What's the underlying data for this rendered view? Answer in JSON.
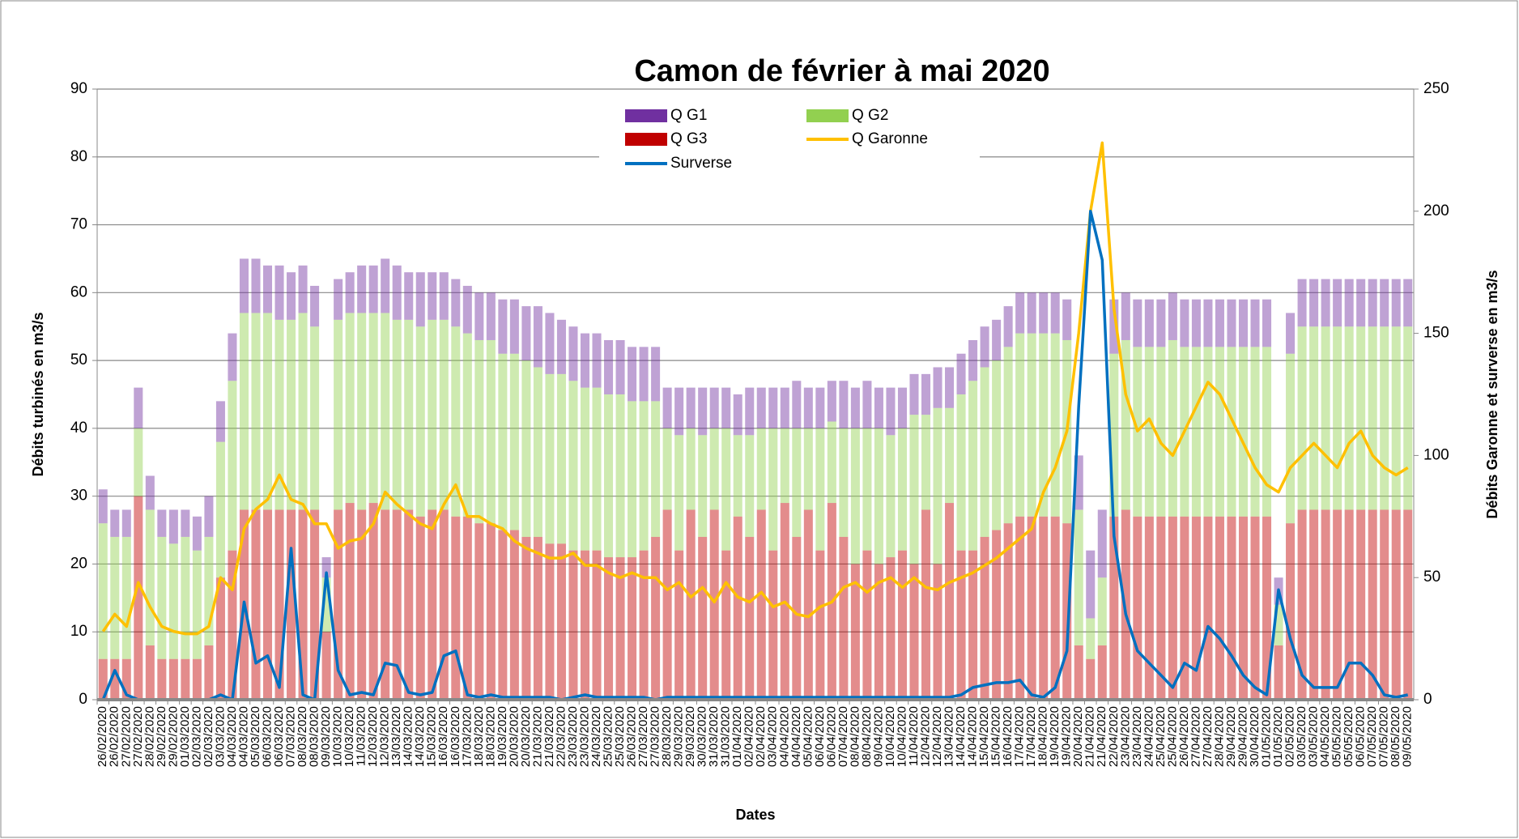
{
  "chart_data": {
    "type": "stacked-bar",
    "title": "Camon de février à mai 2020",
    "x_label": "Dates",
    "y_label": "Débits turbinés en m3/s",
    "y2_label": "Débits Garonne et surverse en m3/s",
    "categories": [
      "26/02/2020",
      "26/02/2020",
      "27/02/2020",
      "27/02/2020",
      "28/02/2020",
      "29/02/2020",
      "29/02/2020",
      "01/03/2020",
      "02/03/2020",
      "02/03/2020",
      "03/03/2020",
      "04/03/2020",
      "04/03/2020",
      "05/03/2020",
      "06/03/2020",
      "06/03/2020",
      "07/03/2020",
      "08/03/2020",
      "08/03/2020",
      "09/03/2020",
      "10/03/2020",
      "10/03/2020",
      "11/03/2020",
      "12/03/2020",
      "12/03/2020",
      "13/03/2020",
      "14/03/2020",
      "14/03/2020",
      "15/03/2020",
      "16/03/2020",
      "16/03/2020",
      "17/03/2020",
      "18/03/2020",
      "18/03/2020",
      "19/03/2020",
      "20/03/2020",
      "20/03/2020",
      "21/03/2020",
      "21/03/2020",
      "22/03/2020",
      "23/03/2020",
      "23/03/2020",
      "24/03/2020",
      "25/03/2020",
      "25/03/2020",
      "26/03/2020",
      "27/03/2020",
      "27/03/2020",
      "28/03/2020",
      "29/03/2020",
      "29/03/2020",
      "30/03/2020",
      "31/03/2020",
      "31/03/2020",
      "01/04/2020",
      "02/04/2020",
      "02/04/2020",
      "03/04/2020",
      "04/04/2020",
      "04/04/2020",
      "05/04/2020",
      "06/04/2020",
      "06/04/2020",
      "07/04/2020",
      "08/04/2020",
      "08/04/2020",
      "09/04/2020",
      "10/04/2020",
      "10/04/2020",
      "11/04/2020",
      "12/04/2020",
      "12/04/2020",
      "13/04/2020",
      "14/04/2020",
      "14/04/2020",
      "15/04/2020",
      "15/04/2020",
      "16/04/2020",
      "17/04/2020",
      "17/04/2020",
      "18/04/2020",
      "19/04/2020",
      "19/04/2020",
      "20/04/2020",
      "21/04/2020",
      "21/04/2020",
      "22/04/2020",
      "23/04/2020",
      "23/04/2020",
      "24/04/2020",
      "25/04/2020",
      "25/04/2020",
      "26/04/2020",
      "27/04/2020",
      "27/04/2020",
      "28/04/2020",
      "29/04/2020",
      "29/04/2020",
      "30/04/2020",
      "01/05/2020",
      "01/05/2020",
      "02/05/2020",
      "03/05/2020",
      "03/05/2020",
      "04/05/2020",
      "05/05/2020",
      "05/05/2020",
      "06/05/2020",
      "07/05/2020",
      "07/05/2020",
      "08/05/2020",
      "09/05/2020"
    ],
    "series": [
      {
        "name": "Q G3",
        "color": "#c00000",
        "mark": "bar",
        "values": [
          6,
          6,
          6,
          30,
          8,
          6,
          6,
          6,
          6,
          8,
          18,
          22,
          28,
          28,
          28,
          28,
          28,
          28,
          28,
          10,
          28,
          29,
          28,
          29,
          28,
          28,
          28,
          27,
          28,
          28,
          27,
          27,
          26,
          26,
          25,
          25,
          24,
          24,
          23,
          23,
          22,
          22,
          22,
          21,
          21,
          21,
          22,
          24,
          28,
          22,
          28,
          24,
          28,
          22,
          27,
          24,
          28,
          22,
          29,
          24,
          28,
          22,
          29,
          24,
          20,
          22,
          20,
          21,
          22,
          20,
          28,
          20,
          29,
          22,
          22,
          24,
          25,
          26,
          27,
          27,
          27,
          27,
          26,
          8,
          6,
          8,
          27,
          28,
          27,
          27,
          27,
          27,
          27,
          27,
          27,
          27,
          27,
          27,
          27,
          27,
          8,
          26,
          28,
          28,
          28,
          28,
          28,
          28,
          28,
          28,
          28,
          28
        ]
      },
      {
        "name": "Q G2",
        "color": "#92d050",
        "mark": "bar",
        "values": [
          20,
          18,
          18,
          10,
          20,
          18,
          17,
          18,
          16,
          16,
          20,
          25,
          29,
          29,
          29,
          28,
          28,
          29,
          27,
          8,
          28,
          28,
          29,
          28,
          29,
          28,
          28,
          28,
          28,
          28,
          28,
          27,
          27,
          27,
          26,
          26,
          26,
          25,
          25,
          25,
          25,
          24,
          24,
          24,
          24,
          23,
          22,
          20,
          12,
          17,
          12,
          15,
          12,
          18,
          12,
          15,
          12,
          18,
          11,
          16,
          12,
          18,
          12,
          16,
          20,
          18,
          20,
          18,
          18,
          22,
          14,
          23,
          14,
          23,
          25,
          25,
          25,
          26,
          27,
          27,
          27,
          27,
          27,
          20,
          6,
          10,
          24,
          25,
          25,
          25,
          25,
          26,
          25,
          25,
          25,
          25,
          25,
          25,
          25,
          25,
          6,
          25,
          27,
          27,
          27,
          27,
          27,
          27,
          27,
          27,
          27,
          27
        ]
      },
      {
        "name": "Q G1",
        "color": "#7030a0",
        "mark": "bar",
        "values": [
          5,
          4,
          4,
          6,
          5,
          4,
          5,
          4,
          5,
          6,
          6,
          7,
          8,
          8,
          7,
          8,
          7,
          7,
          6,
          3,
          6,
          6,
          7,
          7,
          8,
          8,
          7,
          8,
          7,
          7,
          7,
          7,
          7,
          7,
          8,
          8,
          8,
          9,
          9,
          8,
          8,
          8,
          8,
          8,
          8,
          8,
          8,
          8,
          6,
          7,
          6,
          7,
          6,
          6,
          6,
          7,
          6,
          6,
          6,
          7,
          6,
          6,
          6,
          7,
          6,
          7,
          6,
          7,
          6,
          6,
          6,
          6,
          6,
          6,
          6,
          6,
          6,
          6,
          6,
          6,
          6,
          6,
          6,
          8,
          10,
          10,
          8,
          7,
          7,
          7,
          7,
          7,
          7,
          7,
          7,
          7,
          7,
          7,
          7,
          7,
          4,
          6,
          7,
          7,
          7,
          7,
          7,
          7,
          7,
          7,
          7,
          7
        ]
      },
      {
        "name": "Q Garonne",
        "color": "#ffc000",
        "mark": "line",
        "axis": "y2",
        "values": [
          28,
          35,
          30,
          48,
          38,
          30,
          28,
          27,
          27,
          30,
          50,
          45,
          70,
          78,
          82,
          92,
          82,
          80,
          72,
          72,
          62,
          65,
          66,
          72,
          85,
          80,
          76,
          72,
          70,
          80,
          88,
          75,
          75,
          72,
          70,
          65,
          62,
          60,
          58,
          58,
          60,
          55,
          55,
          52,
          50,
          52,
          50,
          50,
          45,
          48,
          42,
          46,
          40,
          48,
          42,
          40,
          44,
          38,
          40,
          35,
          34,
          38,
          40,
          46,
          48,
          44,
          48,
          50,
          46,
          50,
          46,
          45,
          48,
          50,
          52,
          55,
          58,
          62,
          66,
          70,
          85,
          95,
          110,
          150,
          200,
          228,
          160,
          125,
          110,
          115,
          105,
          100,
          110,
          120,
          130,
          125,
          115,
          105,
          95,
          88,
          85,
          95,
          100,
          105,
          100,
          95,
          105,
          110,
          100,
          95,
          92,
          95
        ]
      },
      {
        "name": "Surverse",
        "color": "#0070c0",
        "mark": "line",
        "axis": "y2",
        "values": [
          0,
          12,
          2,
          0,
          0,
          0,
          0,
          0,
          0,
          0,
          2,
          0,
          40,
          15,
          18,
          5,
          62,
          2,
          0,
          52,
          12,
          2,
          3,
          2,
          15,
          14,
          3,
          2,
          3,
          18,
          20,
          2,
          1,
          2,
          1,
          1,
          1,
          1,
          1,
          0,
          1,
          2,
          1,
          1,
          1,
          1,
          1,
          0,
          1,
          1,
          1,
          1,
          1,
          1,
          1,
          1,
          1,
          1,
          1,
          1,
          1,
          1,
          1,
          1,
          1,
          1,
          1,
          1,
          1,
          1,
          1,
          1,
          1,
          2,
          5,
          6,
          7,
          7,
          8,
          2,
          1,
          5,
          20,
          120,
          200,
          180,
          67,
          35,
          20,
          15,
          10,
          5,
          15,
          12,
          30,
          25,
          18,
          10,
          5,
          2,
          45,
          25,
          10,
          5,
          5,
          5,
          15,
          15,
          10,
          2,
          1,
          2
        ]
      }
    ],
    "ylim": [
      0,
      90
    ],
    "yticks": [
      0,
      10,
      20,
      30,
      40,
      50,
      60,
      70,
      80,
      90
    ],
    "y2lim": [
      0,
      250
    ],
    "y2ticks": [
      0,
      50,
      100,
      150,
      200,
      250
    ],
    "grid": true
  }
}
